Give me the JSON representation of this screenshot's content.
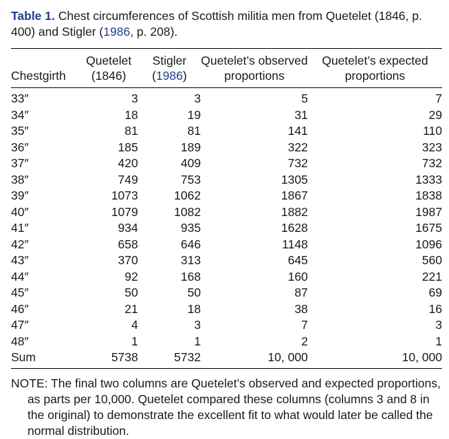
{
  "caption": {
    "label": "Table 1.",
    "text_before": "Chest circumferences of Scottish militia men from Quetelet (1846, p. 400) and Stigler (",
    "ref": "1986",
    "text_after": ", p. 208)."
  },
  "headers": {
    "col0": "Chestgirth",
    "col1_line1": "Quetelet",
    "col1_line2": "(1846)",
    "col2_line1": "Stigler",
    "col2_line2_open": "(",
    "col2_line2_ref": "1986",
    "col2_line2_close": ")",
    "col3_line1": "Quetelet’s observed",
    "col3_line2": "proportions",
    "col4_line1": "Quetelet’s expected",
    "col4_line2": "proportions"
  },
  "rows": [
    {
      "label": "33″",
      "quetelet": "3",
      "stigler": "3",
      "observed": "5",
      "expected": "7"
    },
    {
      "label": "34″",
      "quetelet": "18",
      "stigler": "19",
      "observed": "31",
      "expected": "29"
    },
    {
      "label": "35″",
      "quetelet": "81",
      "stigler": "81",
      "observed": "141",
      "expected": "110"
    },
    {
      "label": "36″",
      "quetelet": "185",
      "stigler": "189",
      "observed": "322",
      "expected": "323"
    },
    {
      "label": "37″",
      "quetelet": "420",
      "stigler": "409",
      "observed": "732",
      "expected": "732"
    },
    {
      "label": "38″",
      "quetelet": "749",
      "stigler": "753",
      "observed": "1305",
      "expected": "1333"
    },
    {
      "label": "39″",
      "quetelet": "1073",
      "stigler": "1062",
      "observed": "1867",
      "expected": "1838"
    },
    {
      "label": "40″",
      "quetelet": "1079",
      "stigler": "1082",
      "observed": "1882",
      "expected": "1987"
    },
    {
      "label": "41″",
      "quetelet": "934",
      "stigler": "935",
      "observed": "1628",
      "expected": "1675"
    },
    {
      "label": "42″",
      "quetelet": "658",
      "stigler": "646",
      "observed": "1148",
      "expected": "1096"
    },
    {
      "label": "43″",
      "quetelet": "370",
      "stigler": "313",
      "observed": "645",
      "expected": "560"
    },
    {
      "label": "44″",
      "quetelet": "92",
      "stigler": "168",
      "observed": "160",
      "expected": "221"
    },
    {
      "label": "45″",
      "quetelet": "50",
      "stigler": "50",
      "observed": "87",
      "expected": "69"
    },
    {
      "label": "46″",
      "quetelet": "21",
      "stigler": "18",
      "observed": "38",
      "expected": "16"
    },
    {
      "label": "47″",
      "quetelet": "4",
      "stigler": "3",
      "observed": "7",
      "expected": "3"
    },
    {
      "label": "48″",
      "quetelet": "1",
      "stigler": "1",
      "observed": "2",
      "expected": "1"
    },
    {
      "label": "Sum",
      "quetelet": "5738",
      "stigler": "5732",
      "observed": "10, 000",
      "expected": "10, 000"
    }
  ],
  "note": {
    "line1": "NOTE: The final two columns are Quetelet’s observed and expected proportions,",
    "rest": "as parts per 10,000. Quetelet compared these columns (columns 3 and 8 in the original) to demonstrate the excellent fit to what would later be called the normal distribution."
  },
  "colors": {
    "link": "#1f3f8c",
    "text": "#1a1a1a"
  }
}
